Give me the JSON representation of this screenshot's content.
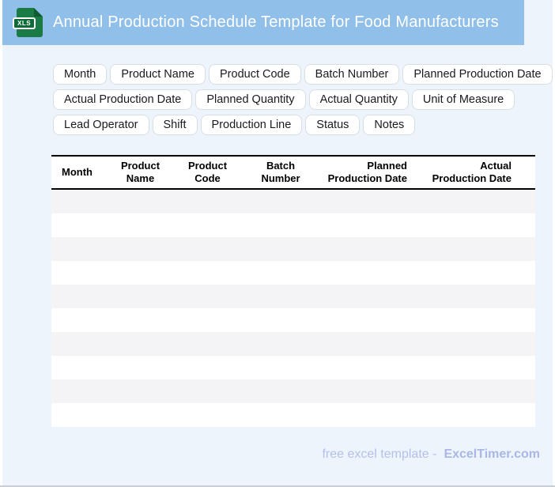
{
  "header": {
    "title": "Annual Production Schedule Template for Food Manufacturers",
    "file_icon_label": "XLS"
  },
  "colors": {
    "header_bg": "#90bfe9",
    "page_bg": "#eef4fc",
    "icon_green": "#1b7b44",
    "icon_green_dark": "#0e5c31",
    "row_stripe": "#f4f4f6",
    "table_border": "#000000",
    "footer_text": "#b4c0ea",
    "footer_brand": "#a9b7e6"
  },
  "chips": {
    "rows": [
      [
        "Month",
        "Product Name",
        "Product Code",
        "Batch Number",
        "Planned Production Date"
      ],
      [
        "Actual Production Date",
        "Planned Quantity",
        "Actual Quantity",
        "Unit of Measure"
      ],
      [
        "Lead Operator",
        "Shift",
        "Production Line",
        "Status",
        "Notes"
      ]
    ]
  },
  "table": {
    "columns": [
      {
        "label": "Month",
        "align": "left"
      },
      {
        "label": "Product\nName",
        "align": "center"
      },
      {
        "label": "Product\nCode",
        "align": "center"
      },
      {
        "label": "Batch\nNumber",
        "align": "center"
      },
      {
        "label": "Planned\nProduction Date",
        "align": "right"
      },
      {
        "label": "Actual\nProduction Date",
        "align": "right"
      }
    ],
    "empty_row_count": 10
  },
  "footer": {
    "tagline": "free excel template -",
    "brand": "ExcelTimer.com"
  }
}
